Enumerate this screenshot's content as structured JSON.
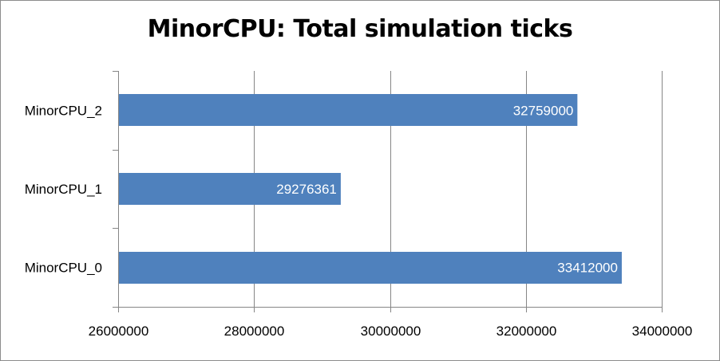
{
  "chart_data": {
    "type": "bar",
    "orientation": "horizontal",
    "title": "MinorCPU: Total simulation ticks",
    "categories": [
      "MinorCPU_0",
      "MinorCPU_1",
      "MinorCPU_2"
    ],
    "values": [
      33412000,
      29276361,
      32759000
    ],
    "data_labels": [
      "33412000",
      "29276361",
      "32759000"
    ],
    "xlim": [
      26000000,
      34000000
    ],
    "x_ticks": [
      26000000,
      28000000,
      30000000,
      32000000,
      34000000
    ],
    "x_tick_labels": [
      "26000000",
      "28000000",
      "30000000",
      "32000000",
      "34000000"
    ],
    "xlabel": "",
    "ylabel": "",
    "grid": true,
    "legend": "none",
    "colors": {
      "bar": "#4f81bd",
      "grid": "#868686",
      "axis": "#868686",
      "label_text": "#ffffff"
    }
  }
}
